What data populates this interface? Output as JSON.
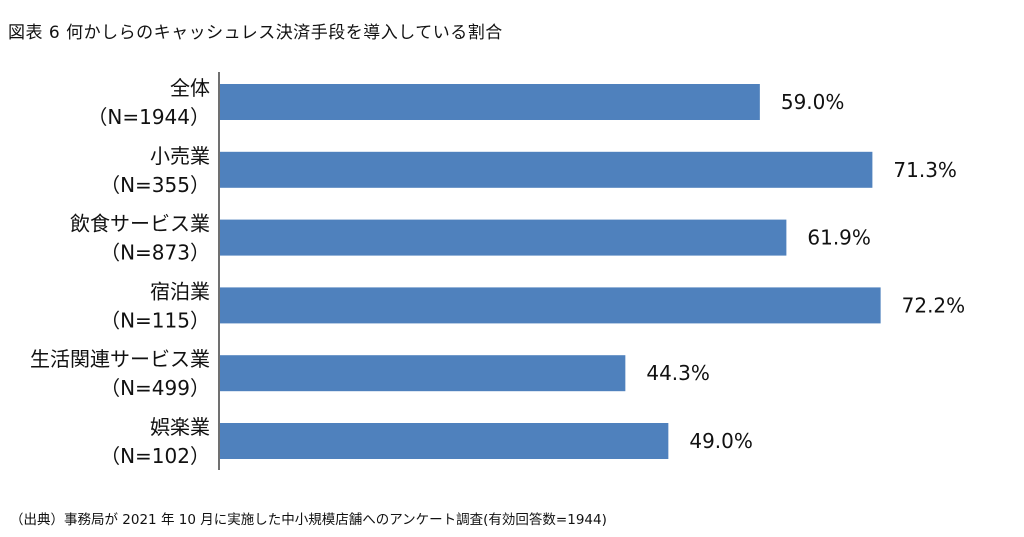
{
  "title": "図表 6 何かしらのキャッシュレス決済手段を導入している割合",
  "source": "（出典）事務局が 2021 年 10 月に実施した中小規模店舗へのアンケート調査(有効回答数=1944)",
  "chart_data": {
    "type": "bar",
    "orientation": "horizontal",
    "categories": [
      {
        "name": "全体",
        "n": "（N=1944）"
      },
      {
        "name": "小売業",
        "n": "（N=355）"
      },
      {
        "name": "飲食サービス業",
        "n": "（N=873）"
      },
      {
        "name": "宿泊業",
        "n": "（N=115）"
      },
      {
        "name": "生活関連サービス業",
        "n": "（N=499）"
      },
      {
        "name": "娯楽業",
        "n": "（N=102）"
      }
    ],
    "values": [
      59.0,
      71.3,
      61.9,
      72.2,
      44.3,
      49.0
    ],
    "value_labels": [
      "59.0%",
      "71.3%",
      "61.9%",
      "72.2%",
      "44.3%",
      "49.0%"
    ],
    "xlim": [
      0,
      100
    ],
    "bar_color": "#4f81bd",
    "grid": false,
    "legend": "none"
  }
}
